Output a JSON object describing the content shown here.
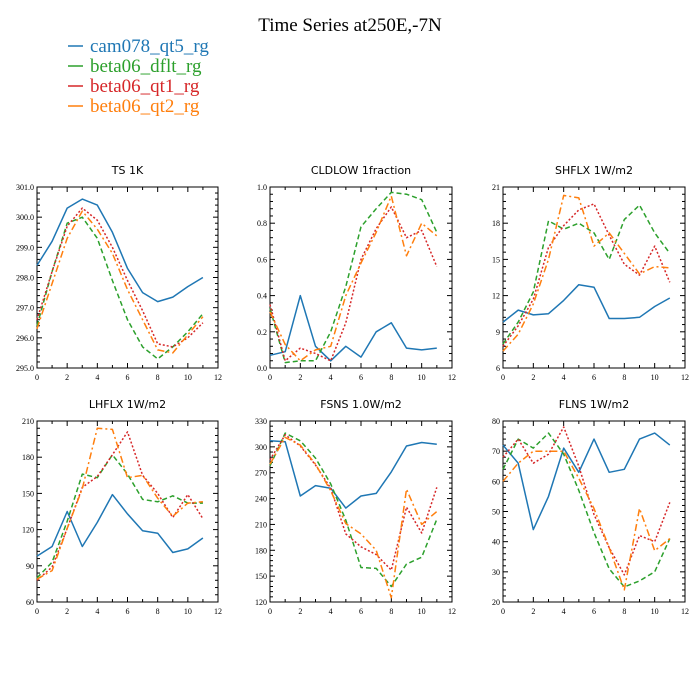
{
  "figure": {
    "title": "Time Series at250E,-7N"
  },
  "legend": {
    "items": [
      {
        "label": "cam078_qt5_rg",
        "color": "#1f77b4",
        "dash": "solid"
      },
      {
        "label": "beta06_dflt_rg",
        "color": "#2ca02c",
        "dash": "dashed"
      },
      {
        "label": "beta06_qt1_rg",
        "color": "#d62728",
        "dash": "dotted"
      },
      {
        "label": "beta06_qt2_rg",
        "color": "#ff7f0e",
        "dash": "dashdot"
      }
    ]
  },
  "chart_data": [
    {
      "type": "line",
      "title": "TS 1K",
      "x": [
        0,
        1,
        2,
        3,
        4,
        5,
        6,
        7,
        8,
        9,
        10,
        11
      ],
      "xlim": [
        0,
        12
      ],
      "xticks": [
        0,
        2,
        4,
        6,
        8,
        10,
        12
      ],
      "xtick_labels": [
        "0",
        "2",
        "4",
        "6",
        "8",
        "10",
        "12"
      ],
      "ylim": [
        295.0,
        301.0
      ],
      "yticks": [
        295.0,
        296.0,
        297.0,
        298.0,
        299.0,
        300.0,
        301.0
      ],
      "ytick_labels": [
        "295.0",
        "296.0",
        "297.0",
        "298.0",
        "299.0",
        "300.0",
        "301.0"
      ],
      "series": [
        {
          "name": "cam078_qt5_rg",
          "values": [
            298.4,
            299.2,
            300.3,
            300.6,
            300.4,
            299.5,
            298.3,
            297.5,
            297.2,
            297.35,
            297.7,
            298.0
          ]
        },
        {
          "name": "beta06_dflt_rg",
          "values": [
            296.4,
            298.2,
            299.8,
            300.0,
            299.3,
            297.9,
            296.6,
            295.7,
            295.3,
            295.7,
            296.2,
            296.8
          ]
        },
        {
          "name": "beta06_qt1_rg",
          "values": [
            296.6,
            298.2,
            299.7,
            300.3,
            299.9,
            299.0,
            297.9,
            296.9,
            295.8,
            295.7,
            296.0,
            296.5
          ]
        },
        {
          "name": "beta06_qt2_rg",
          "values": [
            296.3,
            297.8,
            299.3,
            300.2,
            299.6,
            298.8,
            297.6,
            296.6,
            295.6,
            295.5,
            296.1,
            296.7
          ]
        }
      ]
    },
    {
      "type": "line",
      "title": "CLDLOW 1fraction",
      "x": [
        0,
        1,
        2,
        3,
        4,
        5,
        6,
        7,
        8,
        9,
        10,
        11
      ],
      "xlim": [
        0,
        12
      ],
      "xticks": [
        0,
        2,
        4,
        6,
        8,
        10,
        12
      ],
      "xtick_labels": [
        "0",
        "2",
        "4",
        "6",
        "8",
        "10",
        "12"
      ],
      "ylim": [
        0.0,
        1.0
      ],
      "yticks": [
        0.0,
        0.2,
        0.4,
        0.6,
        0.8,
        1.0
      ],
      "ytick_labels": [
        "0.0",
        "0.2",
        "0.4",
        "0.6",
        "0.8",
        "1.0"
      ],
      "series": [
        {
          "name": "cam078_qt5_rg",
          "values": [
            0.07,
            0.09,
            0.4,
            0.12,
            0.04,
            0.12,
            0.06,
            0.2,
            0.25,
            0.11,
            0.1,
            0.11
          ]
        },
        {
          "name": "beta06_dflt_rg",
          "values": [
            0.33,
            0.03,
            0.04,
            0.04,
            0.2,
            0.45,
            0.78,
            0.88,
            0.97,
            0.96,
            0.93,
            0.75
          ]
        },
        {
          "name": "beta06_qt1_rg",
          "values": [
            0.35,
            0.04,
            0.11,
            0.08,
            0.04,
            0.25,
            0.6,
            0.77,
            0.89,
            0.72,
            0.76,
            0.56
          ]
        },
        {
          "name": "beta06_qt2_rg",
          "values": [
            0.31,
            0.13,
            0.04,
            0.1,
            0.12,
            0.4,
            0.58,
            0.75,
            0.95,
            0.62,
            0.8,
            0.73
          ]
        }
      ]
    },
    {
      "type": "line",
      "title": "SHFLX 1W/m2",
      "x": [
        0,
        1,
        2,
        3,
        4,
        5,
        6,
        7,
        8,
        9,
        10,
        11
      ],
      "xlim": [
        0,
        12
      ],
      "xticks": [
        0,
        2,
        4,
        6,
        8,
        10,
        12
      ],
      "xtick_labels": [
        "0",
        "2",
        "4",
        "6",
        "8",
        "10",
        "12"
      ],
      "ylim": [
        6,
        21
      ],
      "yticks": [
        6,
        9,
        12,
        15,
        18,
        21
      ],
      "ytick_labels": [
        "6",
        "9",
        "12",
        "15",
        "18",
        "21"
      ],
      "series": [
        {
          "name": "cam078_qt5_rg",
          "values": [
            9.8,
            10.8,
            10.4,
            10.5,
            11.6,
            12.9,
            12.7,
            10.1,
            10.1,
            10.2,
            11.1,
            11.8
          ]
        },
        {
          "name": "beta06_dflt_rg",
          "values": [
            8.0,
            9.8,
            12.3,
            18.2,
            17.5,
            18.0,
            17.2,
            15.0,
            18.3,
            19.5,
            17.2,
            15.5
          ]
        },
        {
          "name": "beta06_qt1_rg",
          "values": [
            7.8,
            9.5,
            11.7,
            16.0,
            17.8,
            19.1,
            19.6,
            17.0,
            14.6,
            13.7,
            16.1,
            13.1
          ]
        },
        {
          "name": "beta06_qt2_rg",
          "values": [
            7.4,
            8.8,
            11.3,
            15.0,
            20.3,
            20.1,
            16.1,
            17.2,
            15.5,
            13.8,
            14.4,
            14.3
          ]
        }
      ]
    },
    {
      "type": "line",
      "title": "LHFLX 1W/m2",
      "x": [
        0,
        1,
        2,
        3,
        4,
        5,
        6,
        7,
        8,
        9,
        10,
        11
      ],
      "xlim": [
        0,
        12
      ],
      "xticks": [
        0,
        2,
        4,
        6,
        8,
        10,
        12
      ],
      "xtick_labels": [
        "0",
        "2",
        "4",
        "6",
        "8",
        "10",
        "12"
      ],
      "ylim": [
        60,
        210
      ],
      "yticks": [
        60,
        90,
        120,
        150,
        180,
        210
      ],
      "ytick_labels": [
        "60",
        "90",
        "120",
        "150",
        "180",
        "210"
      ],
      "series": [
        {
          "name": "cam078_qt5_rg",
          "values": [
            98,
            106,
            135,
            106,
            126,
            149,
            133,
            119,
            117,
            101,
            104,
            113
          ]
        },
        {
          "name": "beta06_dflt_rg",
          "values": [
            80,
            93,
            127,
            166,
            163,
            182,
            166,
            145,
            143,
            148,
            142,
            142
          ]
        },
        {
          "name": "beta06_qt1_rg",
          "values": [
            78,
            89,
            121,
            155,
            164,
            182,
            201,
            165,
            150,
            130,
            149,
            129
          ]
        },
        {
          "name": "beta06_qt2_rg",
          "values": [
            79,
            86,
            121,
            154,
            204,
            203,
            163,
            165,
            146,
            131,
            142,
            143
          ]
        }
      ]
    },
    {
      "type": "line",
      "title": "FSNS 1.0W/m2",
      "x": [
        0,
        1,
        2,
        3,
        4,
        5,
        6,
        7,
        8,
        9,
        10,
        11
      ],
      "xlim": [
        0,
        12
      ],
      "xticks": [
        0,
        2,
        4,
        6,
        8,
        10,
        12
      ],
      "xtick_labels": [
        "0",
        "2",
        "4",
        "6",
        "8",
        "10",
        "12"
      ],
      "ylim": [
        120,
        330
      ],
      "yticks": [
        120,
        150,
        180,
        210,
        240,
        270,
        300,
        330
      ],
      "ytick_labels": [
        "120",
        "150",
        "180",
        "210",
        "240",
        "270",
        "300",
        "330"
      ],
      "series": [
        {
          "name": "cam078_qt5_rg",
          "values": [
            307,
            306,
            243,
            255,
            252,
            229,
            243,
            246,
            271,
            301,
            305,
            303
          ]
        },
        {
          "name": "beta06_dflt_rg",
          "values": [
            278,
            316,
            307,
            287,
            257,
            215,
            160,
            159,
            138,
            164,
            172,
            216
          ]
        },
        {
          "name": "beta06_qt1_rg",
          "values": [
            285,
            314,
            301,
            279,
            252,
            199,
            184,
            175,
            157,
            230,
            200,
            253
          ]
        },
        {
          "name": "beta06_qt2_rg",
          "values": [
            280,
            311,
            302,
            280,
            249,
            211,
            199,
            180,
            125,
            251,
            210,
            225
          ]
        }
      ]
    },
    {
      "type": "line",
      "title": "FLNS 1W/m2",
      "x": [
        0,
        1,
        2,
        3,
        4,
        5,
        6,
        7,
        8,
        9,
        10,
        11
      ],
      "xlim": [
        0,
        12
      ],
      "xticks": [
        0,
        2,
        4,
        6,
        8,
        10,
        12
      ],
      "xtick_labels": [
        "0",
        "2",
        "4",
        "6",
        "8",
        "10",
        "12"
      ],
      "ylim": [
        20,
        80
      ],
      "yticks": [
        20,
        30,
        40,
        50,
        60,
        70,
        80
      ],
      "ytick_labels": [
        "20",
        "30",
        "40",
        "50",
        "60",
        "70",
        "80"
      ],
      "series": [
        {
          "name": "cam078_qt5_rg",
          "values": [
            72,
            66,
            44,
            55,
            71,
            63,
            74,
            63,
            64,
            74,
            76,
            72
          ]
        },
        {
          "name": "beta06_dflt_rg",
          "values": [
            64,
            74,
            71,
            76,
            69,
            57,
            43,
            31,
            25,
            27,
            30,
            41
          ]
        },
        {
          "name": "beta06_qt1_rg",
          "values": [
            68,
            74,
            66,
            69,
            78,
            65,
            49,
            38,
            29,
            42,
            40,
            53
          ]
        },
        {
          "name": "beta06_qt2_rg",
          "values": [
            60,
            66,
            70,
            70,
            70,
            61,
            51,
            38,
            24,
            51,
            37,
            41
          ]
        }
      ]
    }
  ]
}
